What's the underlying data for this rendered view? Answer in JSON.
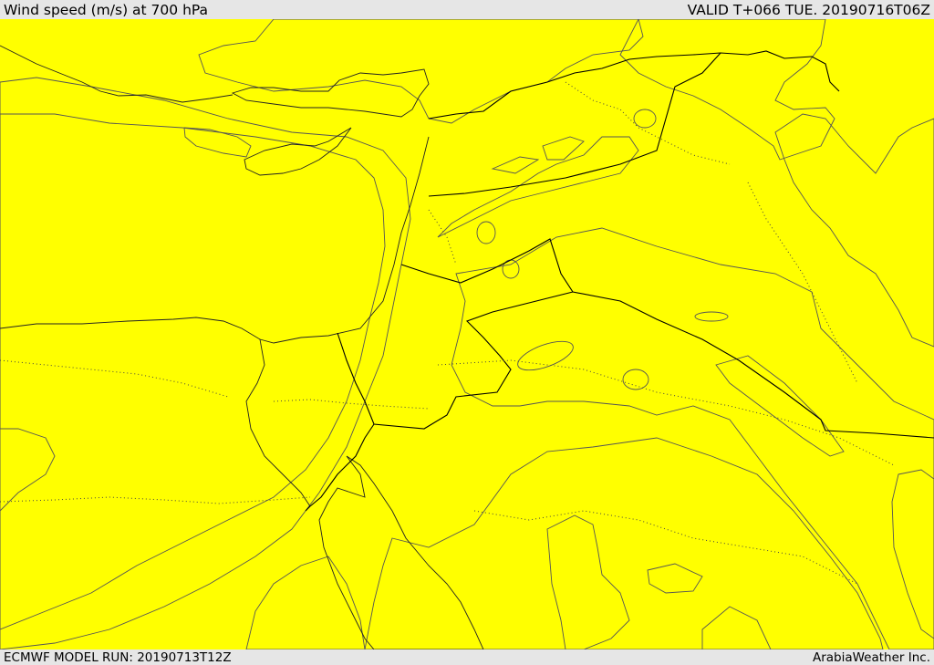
{
  "header": {
    "title": "Wind speed (m/s) at 700 hPa",
    "valid": "VALID T+066 TUE. 20190716T06Z"
  },
  "footer": {
    "model_run": "ECMWF MODEL RUN: 20190713T12Z",
    "credit": "ArabiaWeather Inc."
  },
  "colors": {
    "peach": "#fde0ae",
    "yellow": "#ffff00",
    "gold": "#ffdd00",
    "amber": "#ffbb00",
    "orange": "#f9a11f",
    "sea": "#ffffff"
  }
}
